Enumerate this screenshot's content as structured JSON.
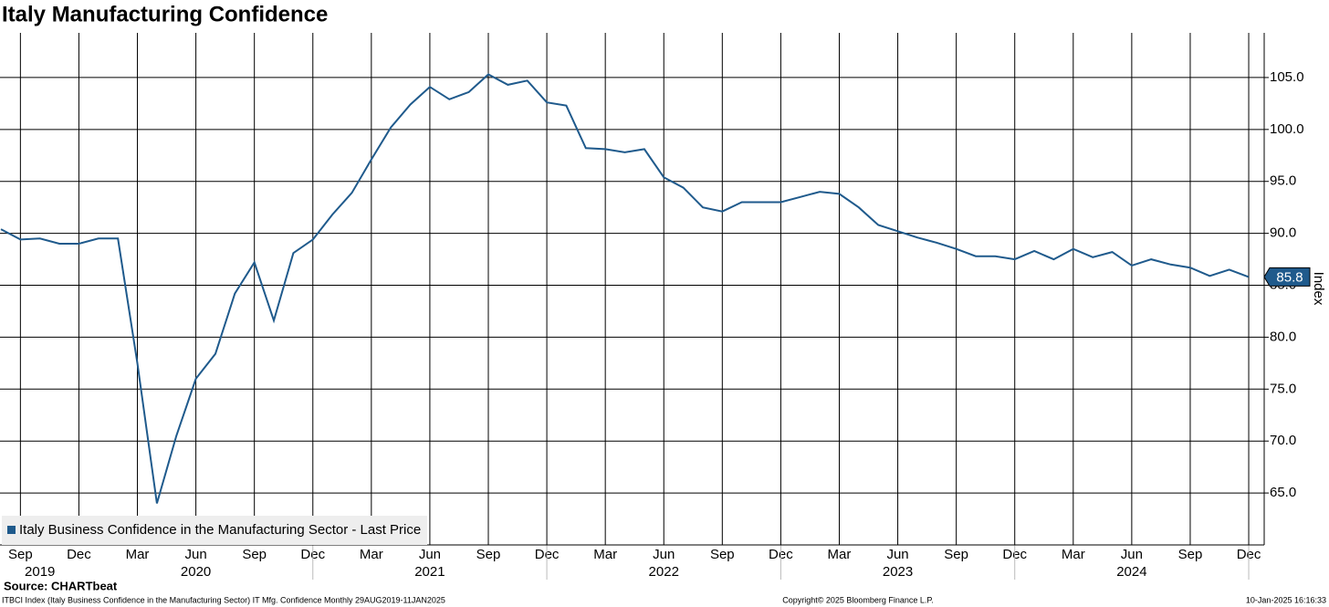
{
  "chart_data": {
    "type": "line",
    "title": "Italy Manufacturing Confidence",
    "y_axis_label": "Index",
    "source": "Source: CHARTbeat",
    "footer_left": "ITBCI Index (Italy Business Confidence in the Manufacturing Sector) IT Mfg. Confidence  Monthly 29AUG2019-11JAN2025",
    "footer_center": "Copyright© 2025 Bloomberg Finance L.P.",
    "footer_right": "10-Jan-2025 16:16:33",
    "legend_position": "lower left",
    "grid": true,
    "x": [
      "2019-08",
      "2019-09",
      "2019-10",
      "2019-11",
      "2019-12",
      "2020-01",
      "2020-02",
      "2020-03",
      "2020-04",
      "2020-05",
      "2020-06",
      "2020-07",
      "2020-08",
      "2020-09",
      "2020-10",
      "2020-11",
      "2020-12",
      "2021-01",
      "2021-02",
      "2021-03",
      "2021-04",
      "2021-05",
      "2021-06",
      "2021-07",
      "2021-08",
      "2021-09",
      "2021-10",
      "2021-11",
      "2021-12",
      "2022-01",
      "2022-02",
      "2022-03",
      "2022-04",
      "2022-05",
      "2022-06",
      "2022-07",
      "2022-08",
      "2022-09",
      "2022-10",
      "2022-11",
      "2022-12",
      "2023-01",
      "2023-02",
      "2023-03",
      "2023-04",
      "2023-05",
      "2023-06",
      "2023-07",
      "2023-08",
      "2023-09",
      "2023-10",
      "2023-11",
      "2023-12",
      "2024-01",
      "2024-02",
      "2024-03",
      "2024-04",
      "2024-05",
      "2024-06",
      "2024-07",
      "2024-08",
      "2024-09",
      "2024-10",
      "2024-11",
      "2024-12"
    ],
    "series": [
      {
        "name": "Italy Business Confidence in the Manufacturing Sector - Last Price",
        "color": "#1f5a8c",
        "values": [
          90.4,
          89.4,
          89.5,
          89.0,
          89.0,
          89.5,
          89.5,
          77.5,
          64.0,
          70.5,
          76.0,
          78.4,
          84.2,
          87.2,
          81.6,
          88.1,
          89.4,
          91.8,
          93.9,
          97.1,
          100.2,
          102.4,
          104.1,
          102.9,
          103.6,
          105.3,
          104.3,
          104.7,
          102.6,
          102.3,
          98.2,
          98.1,
          97.8,
          98.1,
          95.4,
          94.4,
          92.5,
          92.1,
          93.0,
          93.0,
          93.0,
          93.5,
          94.0,
          93.8,
          92.5,
          90.8,
          90.2,
          89.6,
          89.1,
          88.5,
          87.8,
          87.8,
          87.5,
          88.3,
          87.5,
          88.5,
          87.7,
          88.2,
          86.9,
          87.5,
          87.0,
          86.7,
          85.9,
          86.5,
          85.8
        ],
        "last_value_label": "85.8"
      }
    ],
    "ylim": [
      60,
      109.3
    ],
    "yticks": [
      {
        "value": 65,
        "label": "65.0"
      },
      {
        "value": 70,
        "label": "70.0"
      },
      {
        "value": 75,
        "label": "75.0"
      },
      {
        "value": 80,
        "label": "80.0"
      },
      {
        "value": 85,
        "label": "85.0"
      },
      {
        "value": 90,
        "label": "90.0"
      },
      {
        "value": 95,
        "label": "95.0"
      },
      {
        "value": 100,
        "label": "100.0"
      },
      {
        "value": 105,
        "label": "105.0"
      }
    ],
    "xticks": [
      {
        "value": "2019-09",
        "label": "Sep"
      },
      {
        "value": "2019-12",
        "label": "Dec"
      },
      {
        "value": "2020-03",
        "label": "Mar"
      },
      {
        "value": "2020-06",
        "label": "Jun"
      },
      {
        "value": "2020-09",
        "label": "Sep"
      },
      {
        "value": "2020-12",
        "label": "Dec"
      },
      {
        "value": "2021-03",
        "label": "Mar"
      },
      {
        "value": "2021-06",
        "label": "Jun"
      },
      {
        "value": "2021-09",
        "label": "Sep"
      },
      {
        "value": "2021-12",
        "label": "Dec"
      },
      {
        "value": "2022-03",
        "label": "Mar"
      },
      {
        "value": "2022-06",
        "label": "Jun"
      },
      {
        "value": "2022-09",
        "label": "Sep"
      },
      {
        "value": "2022-12",
        "label": "Dec"
      },
      {
        "value": "2023-03",
        "label": "Mar"
      },
      {
        "value": "2023-06",
        "label": "Jun"
      },
      {
        "value": "2023-09",
        "label": "Sep"
      },
      {
        "value": "2023-12",
        "label": "Dec"
      },
      {
        "value": "2024-03",
        "label": "Mar"
      },
      {
        "value": "2024-06",
        "label": "Jun"
      },
      {
        "value": "2024-09",
        "label": "Sep"
      },
      {
        "value": "2024-12",
        "label": "Dec"
      }
    ],
    "year_labels": [
      {
        "value": "2019-10",
        "label": "2019"
      },
      {
        "value": "2020-06",
        "label": "2020"
      },
      {
        "value": "2021-06",
        "label": "2021"
      },
      {
        "value": "2022-06",
        "label": "2022"
      },
      {
        "value": "2023-06",
        "label": "2023"
      },
      {
        "value": "2024-06",
        "label": "2024"
      }
    ]
  }
}
